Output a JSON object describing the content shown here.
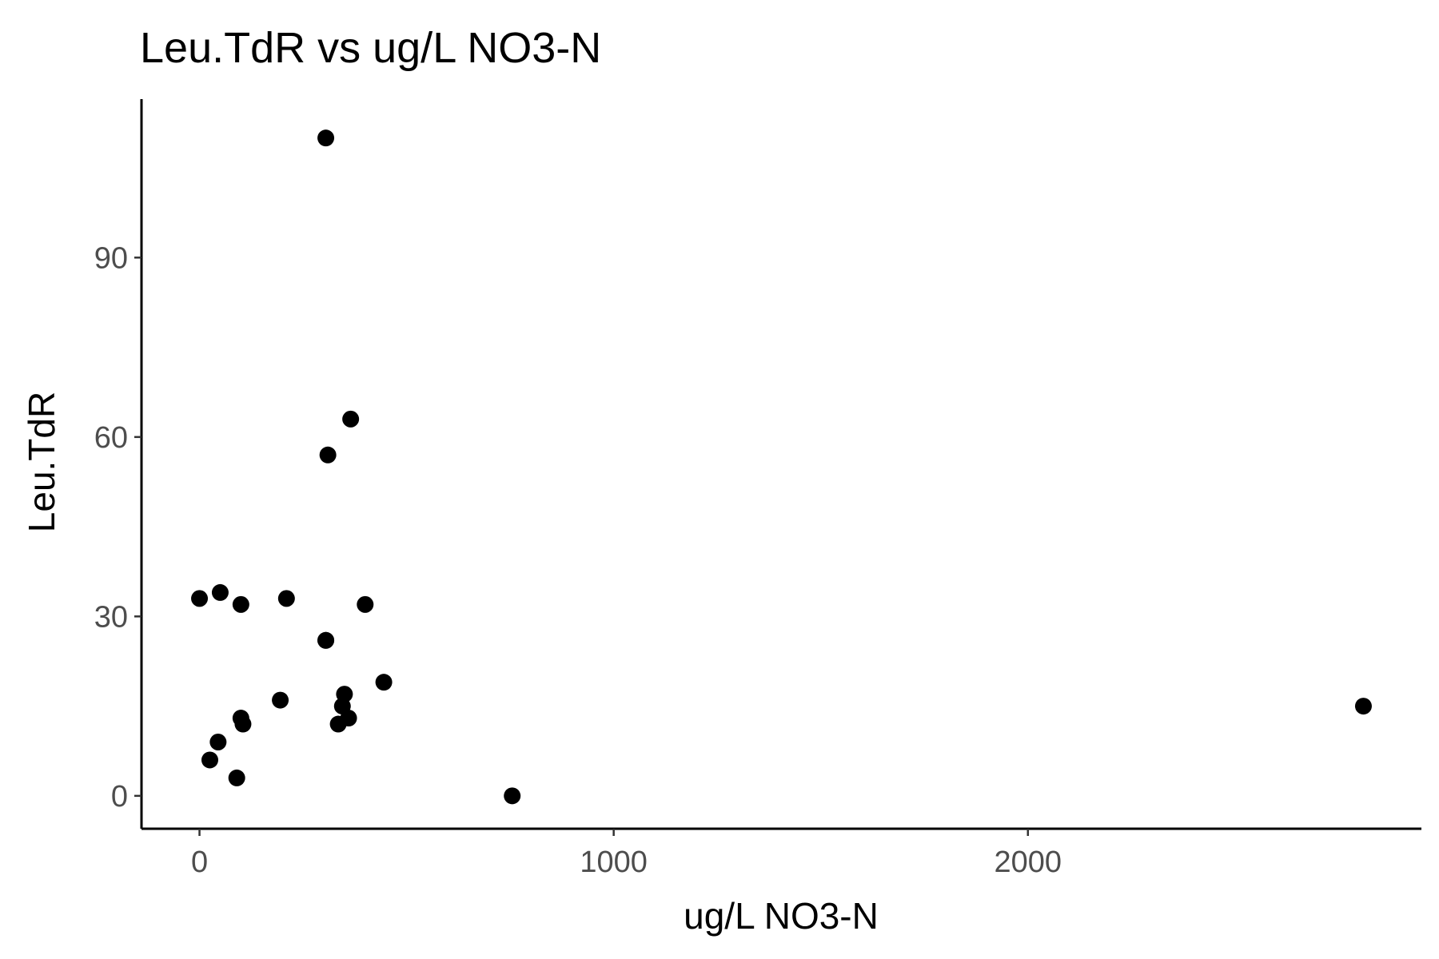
{
  "chart_data": {
    "type": "scatter",
    "title": "Leu.TdR vs ug/L NO3-N",
    "xlabel": "ug/L NO3-N",
    "ylabel": "Leu.TdR",
    "xlim": [
      -140,
      2950
    ],
    "ylim": [
      -5.5,
      116.5
    ],
    "xticks": [
      0,
      1000,
      2000
    ],
    "xtick_labels": [
      "0",
      "1000",
      "2000"
    ],
    "yticks": [
      0,
      30,
      60,
      90
    ],
    "ytick_labels": [
      "0",
      "30",
      "60",
      "90"
    ],
    "grid": false,
    "legend": "none",
    "point_color": "#000000",
    "x": [
      0,
      50,
      100,
      210,
      305,
      400,
      25,
      45,
      90,
      100,
      105,
      195,
      305,
      335,
      345,
      350,
      360,
      445,
      755,
      2810,
      305,
      310,
      365
    ],
    "y": [
      33,
      34,
      32,
      33,
      26,
      32,
      6,
      9,
      3,
      13,
      12,
      16,
      110,
      12,
      15,
      17,
      13,
      19,
      0,
      15,
      26,
      57,
      63
    ]
  }
}
